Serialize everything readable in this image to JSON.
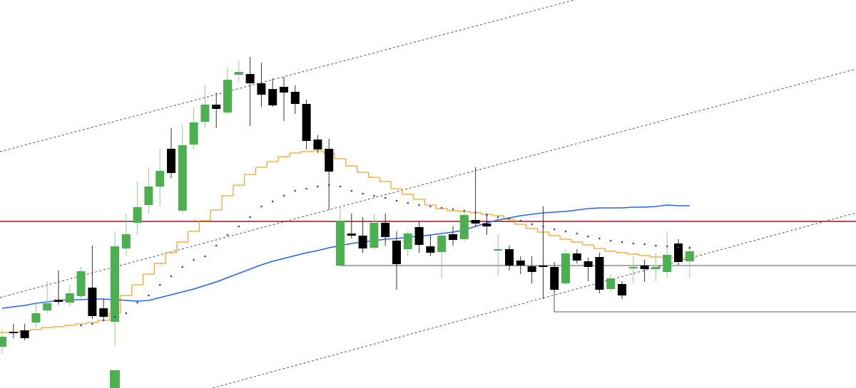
{
  "chart_data": {
    "type": "candlestick",
    "ylim": [
      0,
      545
    ],
    "up_color": "#4caf50",
    "down_color": "#000000",
    "open": [
      58,
      79,
      81,
      92,
      109,
      124,
      120,
      129,
      141,
      112,
      93,
      196,
      232,
      257,
      283,
      336,
      249,
      342,
      374,
      398,
      387,
      440,
      441,
      428,
      420,
      423,
      416,
      399,
      349,
      336,
      172,
      217,
      214,
      197,
      232,
      207,
      195,
      226,
      199,
      191,
      216,
      209,
      236,
      231,
      193,
      195,
      179,
      171,
      172,
      170,
      147,
      189,
      178,
      184,
      139,
      146,
      168,
      172,
      167,
      163,
      203,
      178
    ],
    "high": [
      82,
      90,
      90,
      120,
      150,
      165,
      145,
      170,
      200,
      125,
      220,
      245,
      290,
      310,
      337,
      365,
      370,
      395,
      425,
      415,
      450,
      460,
      465,
      457,
      435,
      437,
      425,
      405,
      355,
      350,
      255,
      245,
      240,
      245,
      245,
      220,
      220,
      235,
      215,
      220,
      227,
      250,
      310,
      245,
      215,
      200,
      185,
      185,
      255,
      177,
      195,
      195,
      183,
      190,
      160,
      150,
      185,
      180,
      190,
      220,
      209,
      200
    ],
    "low": [
      48,
      70,
      67,
      85,
      105,
      117,
      115,
      125,
      97,
      95,
      60,
      185,
      215,
      245,
      255,
      295,
      245,
      335,
      365,
      365,
      385,
      430,
      368,
      395,
      395,
      375,
      385,
      335,
      330,
      250,
      172,
      210,
      190,
      195,
      200,
      138,
      185,
      190,
      185,
      155,
      200,
      205,
      227,
      215,
      157,
      165,
      160,
      147,
      125,
      135,
      145,
      175,
      150,
      133,
      135,
      125,
      147,
      149,
      150,
      155,
      173,
      155
    ],
    "close": [
      72,
      77,
      70,
      105,
      119,
      121,
      133,
      164,
      101,
      100,
      199,
      216,
      254,
      283,
      305,
      302,
      341,
      373,
      398,
      392,
      433,
      444,
      428,
      412,
      397,
      415,
      399,
      347,
      335,
      304,
      235,
      214,
      196,
      232,
      212,
      174,
      217,
      201,
      190,
      214,
      208,
      243,
      231,
      227,
      195,
      172,
      172,
      163,
      170,
      138,
      189,
      179,
      170,
      138,
      154,
      130,
      170,
      167,
      170,
      187,
      177,
      192
    ],
    "moving_average": {
      "color": "#2962ff",
      "values": [
        112,
        114,
        116,
        119,
        121,
        123,
        124,
        124,
        125,
        125,
        124,
        123,
        122,
        123,
        127,
        131,
        135,
        139,
        144,
        149,
        155,
        161,
        167,
        173,
        178,
        182,
        186,
        190,
        193,
        197,
        200,
        203,
        205,
        207,
        209,
        210,
        212,
        213,
        215,
        217,
        219,
        222,
        227,
        232,
        236,
        239,
        242,
        244,
        246,
        247,
        248,
        250,
        252,
        253,
        253,
        253,
        254,
        254,
        255,
        257,
        256,
        256
      ]
    },
    "step_line": {
      "color": "#f5a01a",
      "values": [
        78,
        78,
        80,
        82,
        85,
        86,
        88,
        90,
        92,
        95,
        105,
        130,
        145,
        160,
        175,
        190,
        205,
        220,
        235,
        250,
        270,
        285,
        300,
        310,
        318,
        325,
        330,
        332,
        333,
        330,
        322,
        312,
        303,
        296,
        290,
        280,
        272,
        265,
        257,
        252,
        249,
        248,
        246,
        244,
        242,
        237,
        230,
        224,
        219,
        214,
        209,
        205,
        201,
        196,
        192,
        190,
        188,
        186,
        184,
        183,
        183,
        183
      ]
    },
    "dots": {
      "color": "#3a3ab8",
      "values": [
        null,
        null,
        null,
        null,
        null,
        null,
        null,
        88,
        90,
        95,
        100,
        105,
        120,
        130,
        145,
        157,
        170,
        180,
        185,
        200,
        215,
        227,
        240,
        255,
        262,
        270,
        277,
        280,
        283,
        285,
        283,
        277,
        273,
        270,
        267,
        263,
        260,
        257,
        255,
        253,
        251,
        249,
        247,
        243,
        240,
        238,
        235,
        230,
        227,
        223,
        220,
        217,
        213,
        210,
        207,
        205,
        203,
        202,
        200,
        199,
        198,
        197
      ]
    }
  }
}
